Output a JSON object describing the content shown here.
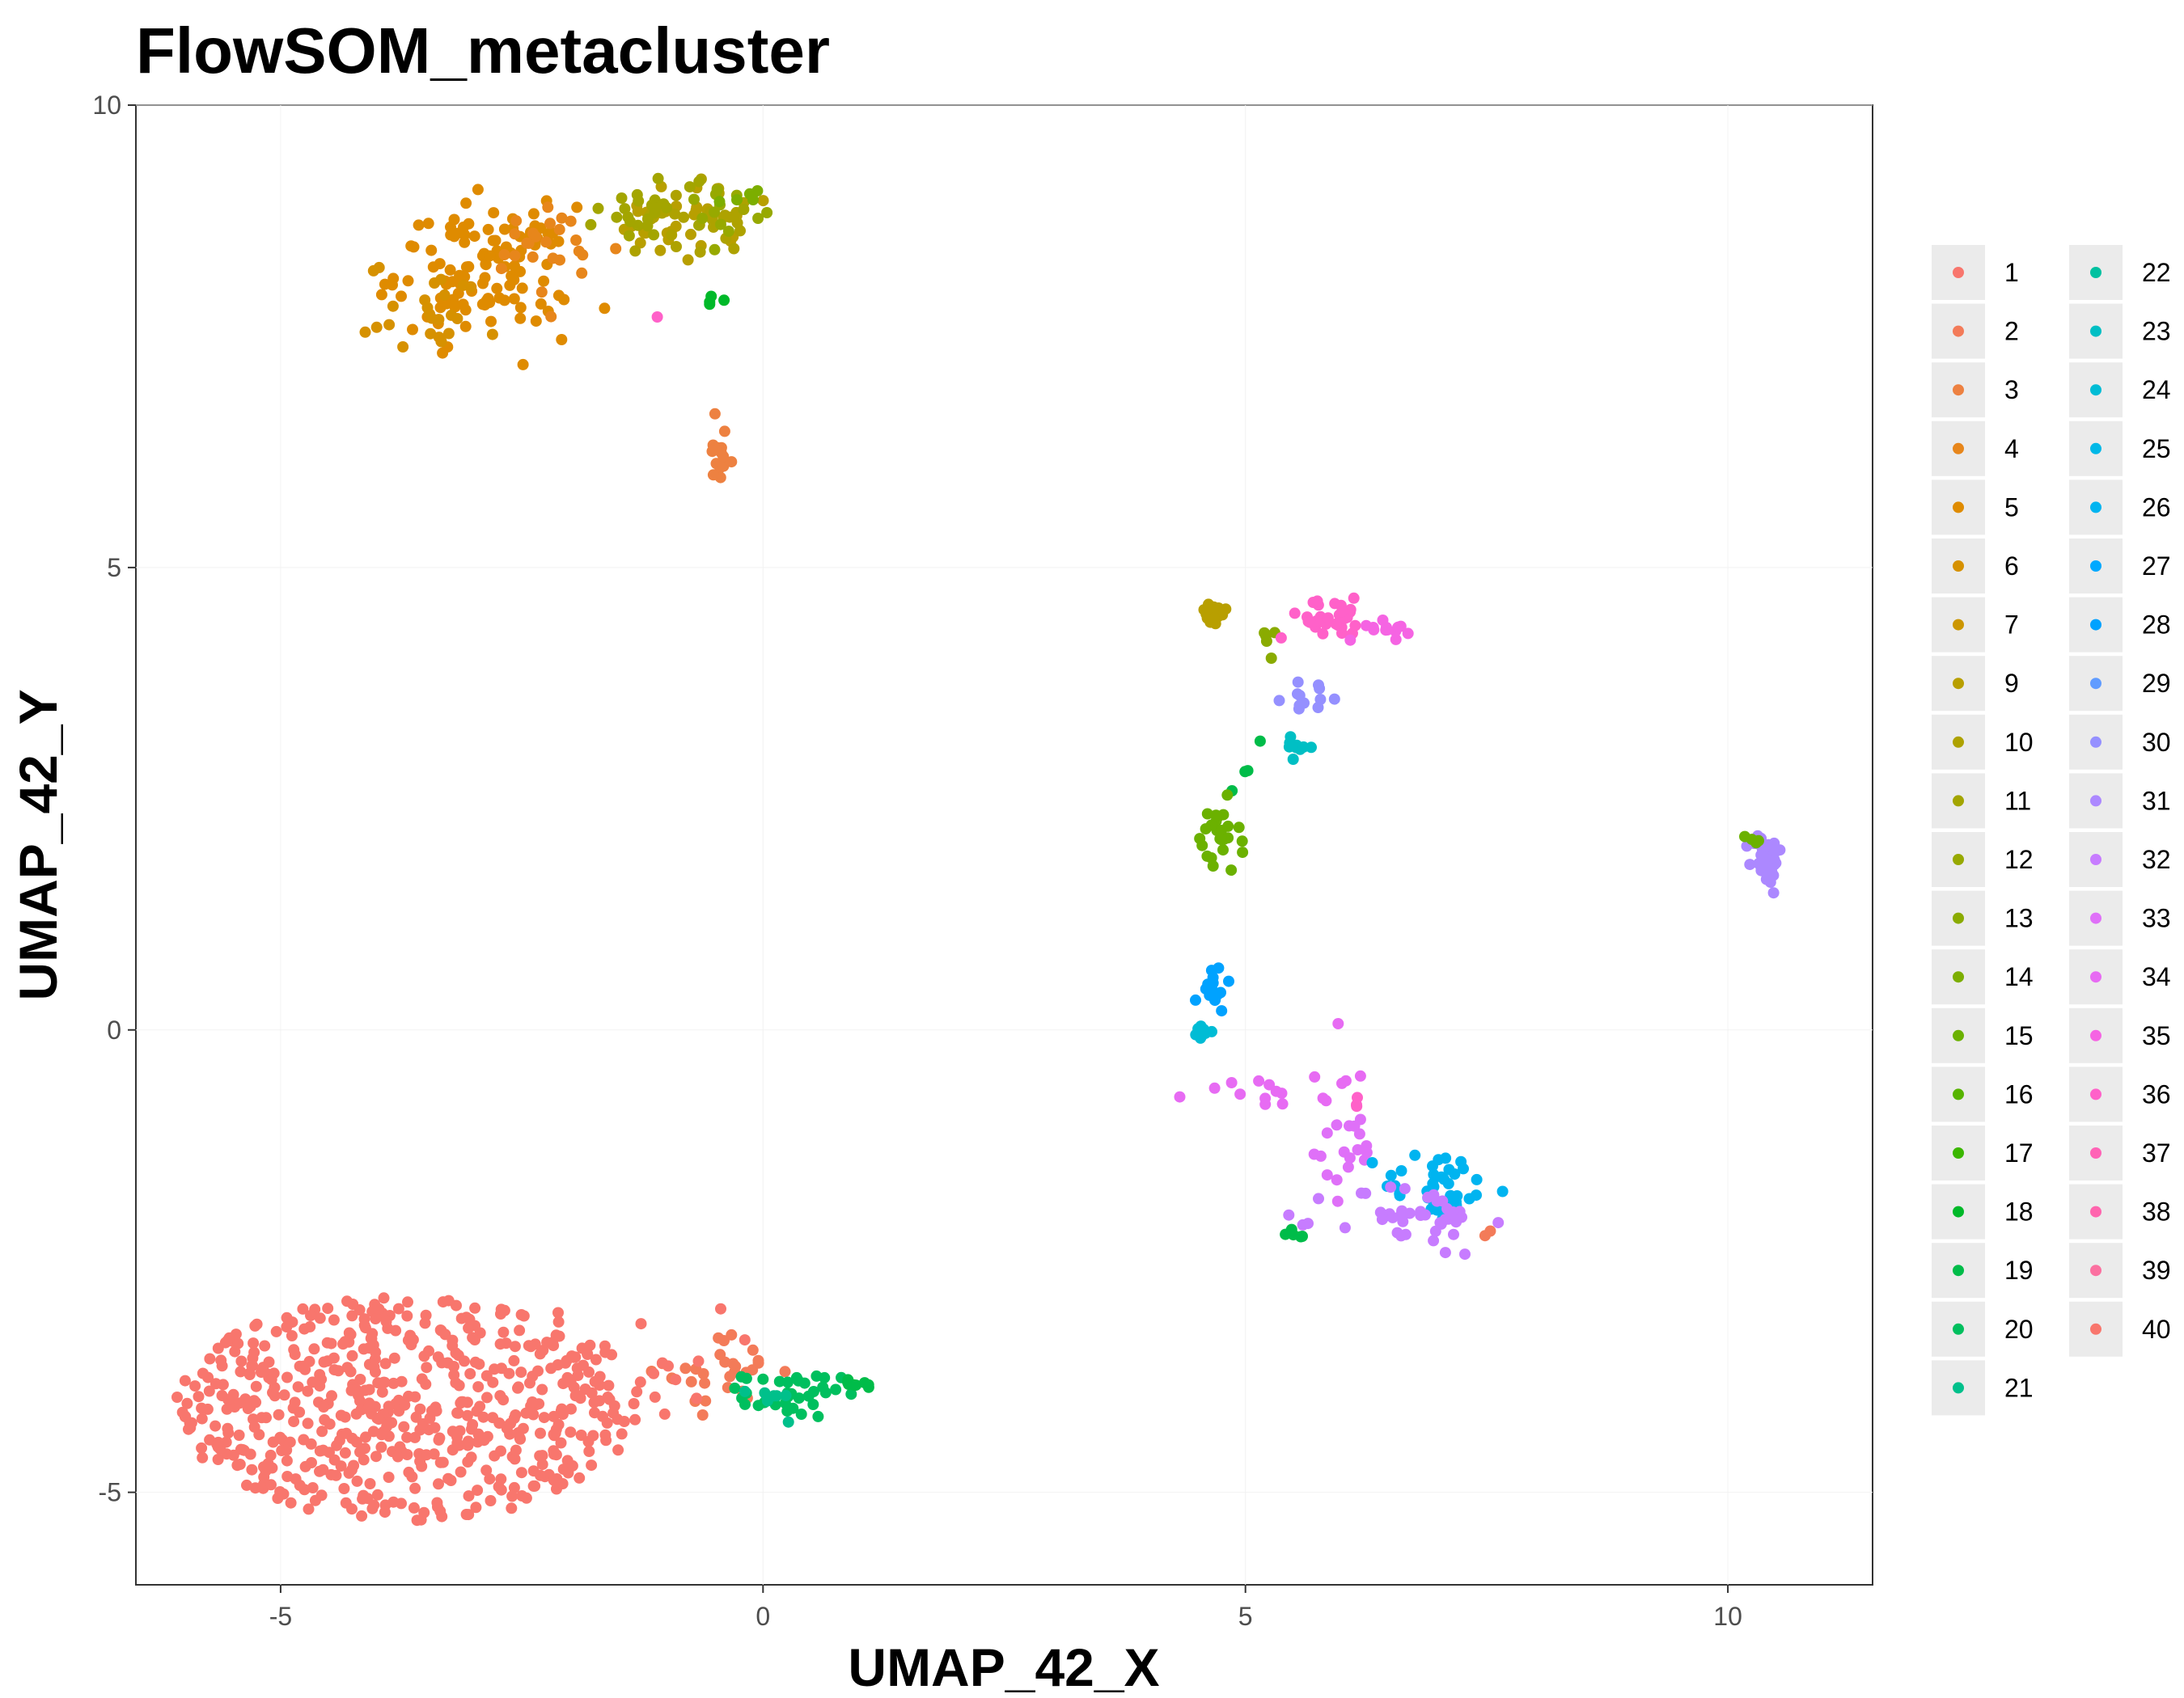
{
  "chart_data": {
    "type": "scatter",
    "title": "FlowSOM_metacluster",
    "xlabel": "UMAP_42_X",
    "ylabel": "UMAP_42_Y",
    "xlim": [
      -6.5,
      11.5
    ],
    "ylim": [
      -6,
      10
    ],
    "x_ticks": [
      -5,
      0,
      5,
      10
    ],
    "x_tick_labels": [
      "-5",
      "0",
      "5",
      "10"
    ],
    "y_ticks": [
      -5,
      0,
      5,
      10
    ],
    "y_tick_labels": [
      "-5",
      "0",
      "5",
      "10"
    ],
    "grid": false,
    "legend_position": "right",
    "legend_columns": 2,
    "categories": [
      "1",
      "2",
      "3",
      "4",
      "5",
      "6",
      "7",
      "9",
      "10",
      "11",
      "12",
      "13",
      "14",
      "15",
      "16",
      "17",
      "18",
      "19",
      "20",
      "21",
      "22",
      "23",
      "24",
      "25",
      "26",
      "27",
      "28",
      "29",
      "30",
      "31",
      "32",
      "33",
      "34",
      "35",
      "36",
      "37",
      "38",
      "39",
      "40"
    ],
    "colors": [
      "#F8766D",
      "#F37B59",
      "#ED8141",
      "#E7861B",
      "#DF8B00",
      "#D69100",
      "#CC9600",
      "#B89F00",
      "#AEA200",
      "#A3A500",
      "#97A900",
      "#8AAB00",
      "#7CAE00",
      "#6BB100",
      "#57B400",
      "#3BB700",
      "#00B929",
      "#00BC49",
      "#00BF5E",
      "#00C08B",
      "#00C1A0",
      "#00BFC4",
      "#00BCD5",
      "#00B8E7",
      "#00B4F0",
      "#00A9FF",
      "#00A2FF",
      "#619CFF",
      "#9590FF",
      "#AC88FF",
      "#C77CFF",
      "#DF70F8",
      "#E76BF3",
      "#F564E3",
      "#FF61C9",
      "#FF63B6",
      "#FF65AE",
      "#FB70A0",
      "#F8766D"
    ],
    "clusters": [
      {
        "name": "1",
        "cx": -3.7,
        "cy": -4.1,
        "sx": 1.2,
        "sy": 0.55,
        "n": 560,
        "shape": "blob"
      },
      {
        "name": "2",
        "cx": -0.4,
        "cy": -3.7,
        "sx": 0.3,
        "sy": 0.2,
        "n": 30
      },
      {
        "name": "40",
        "cx": -1.6,
        "cy": -3.6,
        "sx": 0.6,
        "sy": 0.3,
        "n": 40
      },
      {
        "name": "5",
        "cx": -2.9,
        "cy": 8.2,
        "sx": 0.45,
        "sy": 0.35,
        "n": 120
      },
      {
        "name": "3",
        "cx": -0.45,
        "cy": 6.2,
        "sx": 0.07,
        "sy": 0.25,
        "n": 16
      },
      {
        "name": "4",
        "cx": -2.2,
        "cy": 8.4,
        "sx": 0.35,
        "sy": 0.25,
        "n": 25
      },
      {
        "name": "6",
        "cx": -3.4,
        "cy": 7.8,
        "sx": 0.35,
        "sy": 0.25,
        "n": 25
      },
      {
        "name": "9",
        "cx": -0.9,
        "cy": 8.7,
        "sx": 0.3,
        "sy": 0.2,
        "n": 30
      },
      {
        "name": "10",
        "cx": -0.7,
        "cy": 8.8,
        "sx": 0.3,
        "sy": 0.2,
        "n": 30
      },
      {
        "name": "11",
        "cx": -1.1,
        "cy": 8.9,
        "sx": 0.3,
        "sy": 0.2,
        "n": 25
      },
      {
        "name": "12",
        "cx": -0.4,
        "cy": 8.9,
        "sx": 0.2,
        "sy": 0.12,
        "n": 12
      },
      {
        "name": "14",
        "cx": -0.2,
        "cy": 9.0,
        "sx": 0.1,
        "sy": 0.05,
        "n": 5
      },
      {
        "name": "18",
        "cx": -0.55,
        "cy": 7.9,
        "sx": 0.05,
        "sy": 0.05,
        "n": 4
      },
      {
        "name": "36",
        "cx": -1.1,
        "cy": 7.7,
        "sx": 0.01,
        "sy": 0.01,
        "n": 1
      },
      {
        "name": "20",
        "cx": 0.3,
        "cy": -3.95,
        "sx": 0.25,
        "sy": 0.12,
        "n": 35
      },
      {
        "name": "19",
        "cx": 0.9,
        "cy": -3.85,
        "sx": 0.15,
        "sy": 0.05,
        "n": 8
      },
      {
        "name": "21",
        "cx": 0.1,
        "cy": -4.0,
        "sx": 0.12,
        "sy": 0.08,
        "n": 8
      },
      {
        "name": "9",
        "cx": 4.65,
        "cy": 4.5,
        "sx": 0.08,
        "sy": 0.07,
        "n": 16
      },
      {
        "name": "13",
        "cx": 5.25,
        "cy": 4.2,
        "sx": 0.05,
        "sy": 0.2,
        "n": 5
      },
      {
        "name": "36",
        "cx": 5.9,
        "cy": 4.45,
        "sx": 0.3,
        "sy": 0.1,
        "n": 30
      },
      {
        "name": "35",
        "cx": 6.4,
        "cy": 4.35,
        "sx": 0.15,
        "sy": 0.07,
        "n": 14
      },
      {
        "name": "30",
        "cx": 5.7,
        "cy": 3.6,
        "sx": 0.15,
        "sy": 0.08,
        "n": 12
      },
      {
        "name": "23",
        "cx": 5.55,
        "cy": 3.05,
        "sx": 0.08,
        "sy": 0.05,
        "n": 10
      },
      {
        "name": "19",
        "cx": 5.05,
        "cy": 2.85,
        "sx": 0.12,
        "sy": 0.12,
        "n": 4
      },
      {
        "name": "15",
        "cx": 4.7,
        "cy": 2.05,
        "sx": 0.12,
        "sy": 0.2,
        "n": 26
      },
      {
        "name": "31",
        "cx": 10.4,
        "cy": 1.85,
        "sx": 0.08,
        "sy": 0.14,
        "n": 45
      },
      {
        "name": "15",
        "cx": 10.25,
        "cy": 2.05,
        "sx": 0.04,
        "sy": 0.04,
        "n": 4
      },
      {
        "name": "28",
        "cx": 4.65,
        "cy": 0.45,
        "sx": 0.08,
        "sy": 0.12,
        "n": 16
      },
      {
        "name": "24",
        "cx": 4.6,
        "cy": -0.05,
        "sx": 0.06,
        "sy": 0.08,
        "n": 8
      },
      {
        "name": "34",
        "cx": 5.3,
        "cy": -0.55,
        "sx": 0.4,
        "sy": 0.18,
        "n": 18
      },
      {
        "name": "33",
        "cx": 6.1,
        "cy": -1.3,
        "sx": 0.2,
        "sy": 0.25,
        "n": 18
      },
      {
        "name": "26",
        "cx": 7.0,
        "cy": -1.7,
        "sx": 0.3,
        "sy": 0.2,
        "n": 42
      },
      {
        "name": "32",
        "cx": 6.7,
        "cy": -2.05,
        "sx": 0.4,
        "sy": 0.2,
        "n": 42
      },
      {
        "name": "36",
        "cx": 6.2,
        "cy": -0.8,
        "sx": 0.05,
        "sy": 0.05,
        "n": 3
      },
      {
        "name": "19",
        "cx": 5.55,
        "cy": -2.2,
        "sx": 0.06,
        "sy": 0.02,
        "n": 6
      },
      {
        "name": "2",
        "cx": 7.5,
        "cy": -2.2,
        "sx": 0.03,
        "sy": 0.03,
        "n": 2
      }
    ]
  },
  "legend": {
    "col1": [
      "1",
      "2",
      "3",
      "4",
      "5",
      "6",
      "7",
      "9",
      "10",
      "11",
      "12",
      "13",
      "14",
      "15",
      "16",
      "17",
      "18",
      "19",
      "20",
      "21"
    ],
    "col2": [
      "22",
      "23",
      "24",
      "25",
      "26",
      "27",
      "28",
      "29",
      "30",
      "31",
      "32",
      "33",
      "34",
      "35",
      "36",
      "37",
      "38",
      "39",
      "40"
    ]
  }
}
